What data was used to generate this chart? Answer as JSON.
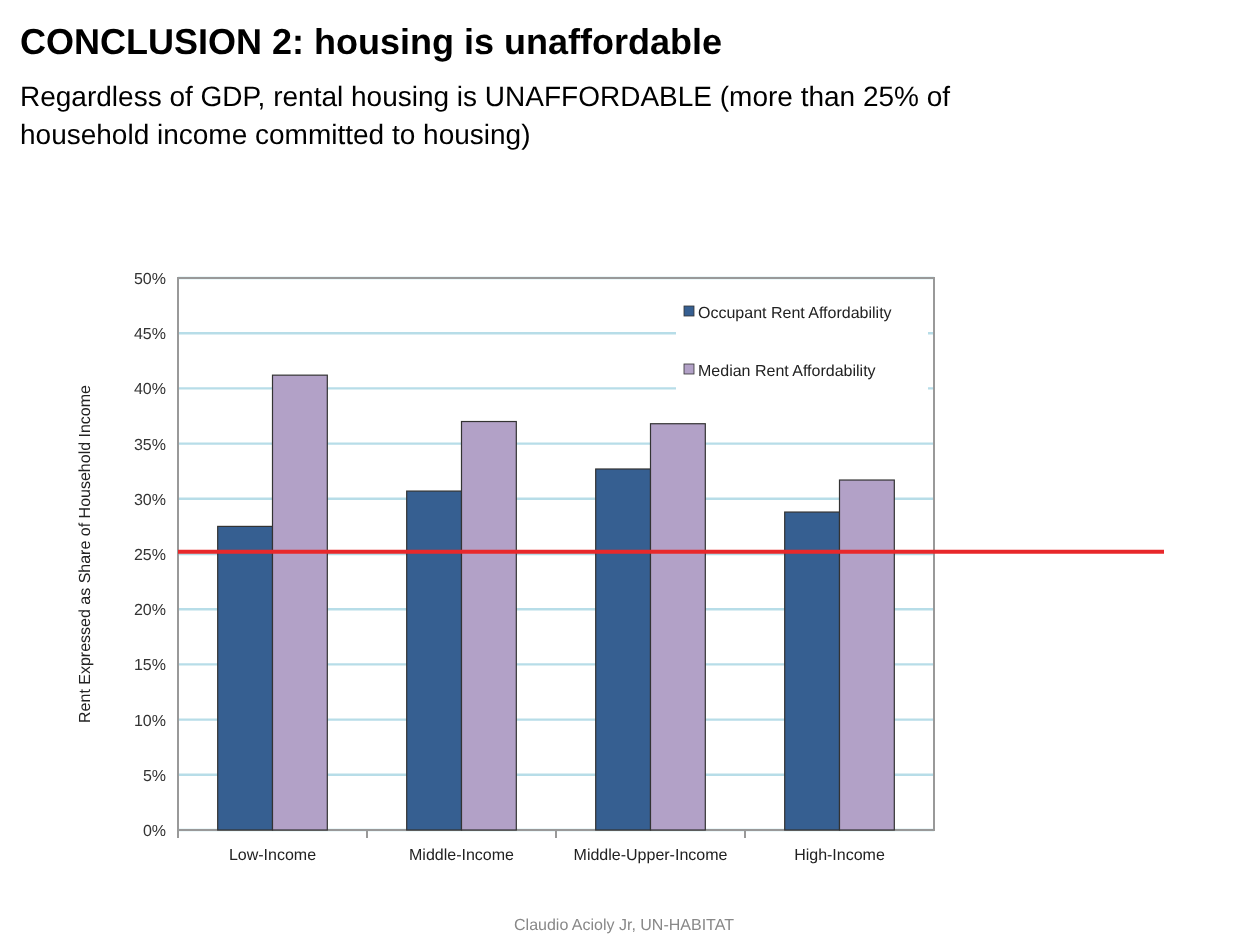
{
  "chart_data": {
    "type": "bar",
    "title": "CONCLUSION 2:  housing is unaffordable",
    "subtitle": "Regardless of GDP, rental housing is UNAFFORDABLE (more than 25% of household income committed to housing)",
    "ylabel": "Rent Expressed as Share of Household Income",
    "categories": [
      "Low-Income",
      "Middle-Income",
      "Middle-Upper-Income",
      "High-Income"
    ],
    "series": [
      {
        "name": "Occupant Rent Affordability",
        "color": "#365f91",
        "values": [
          27.5,
          30.7,
          32.7,
          28.8
        ]
      },
      {
        "name": "Median Rent Affordability",
        "color": "#b2a1c7",
        "values": [
          41.2,
          37,
          36.8,
          31.7
        ]
      }
    ],
    "ylim": [
      0,
      50
    ],
    "yticks": [
      {
        "value": 0,
        "label": "0%"
      },
      {
        "value": 5,
        "label": "5%"
      },
      {
        "value": 10,
        "label": "10%"
      },
      {
        "value": 15,
        "label": "15%"
      },
      {
        "value": 20,
        "label": "20%"
      },
      {
        "value": 25,
        "label": "25%"
      },
      {
        "value": 30,
        "label": "30%"
      },
      {
        "value": 35,
        "label": "35%"
      },
      {
        "value": 40,
        "label": "40%"
      },
      {
        "value": 45,
        "label": "45%"
      },
      {
        "value": 50,
        "label": "50%"
      }
    ],
    "grid": "y",
    "legend": "top right",
    "ref_lines": [
      {
        "axis": "y",
        "value": 25.2,
        "color": "#e8282b"
      }
    ],
    "annotations": [
      "Claudio Acioly Jr, UN-HABITAT"
    ]
  }
}
